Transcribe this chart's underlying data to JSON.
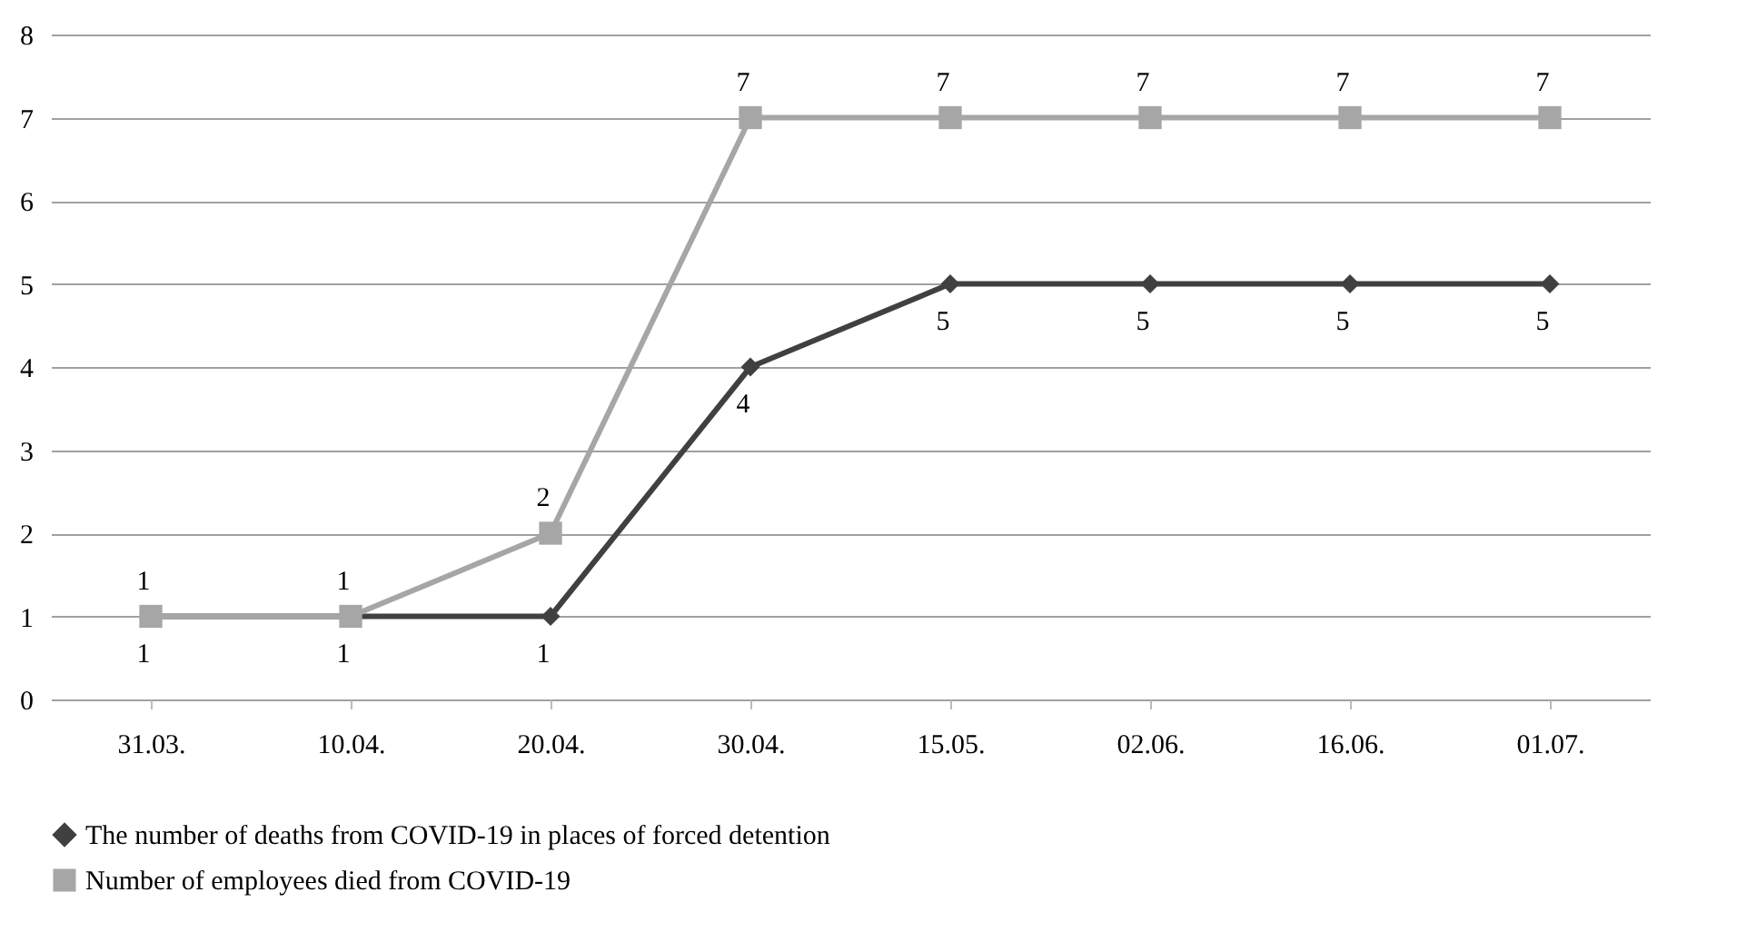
{
  "chart_data": {
    "type": "line",
    "categories": [
      "31.03.",
      "10.04.",
      "20.04.",
      "30.04.",
      "15.05.",
      "02.06.",
      "16.06.",
      "01.07."
    ],
    "series": [
      {
        "name": "The number of deaths from COVID-19 in places of forced detention",
        "color": "#404040",
        "marker": "diamond",
        "values": [
          1,
          1,
          1,
          4,
          5,
          5,
          5,
          5
        ]
      },
      {
        "name": "Number of employees died from COVID-19",
        "color": "#a6a6a6",
        "marker": "square",
        "values": [
          1,
          1,
          2,
          7,
          7,
          7,
          7,
          7
        ]
      }
    ],
    "ylim": [
      0,
      8
    ],
    "yticks": [
      0,
      1,
      2,
      3,
      4,
      5,
      6,
      7,
      8
    ],
    "grid": "y",
    "legend": "bottom",
    "data_labels": true,
    "line_style": "solid"
  }
}
